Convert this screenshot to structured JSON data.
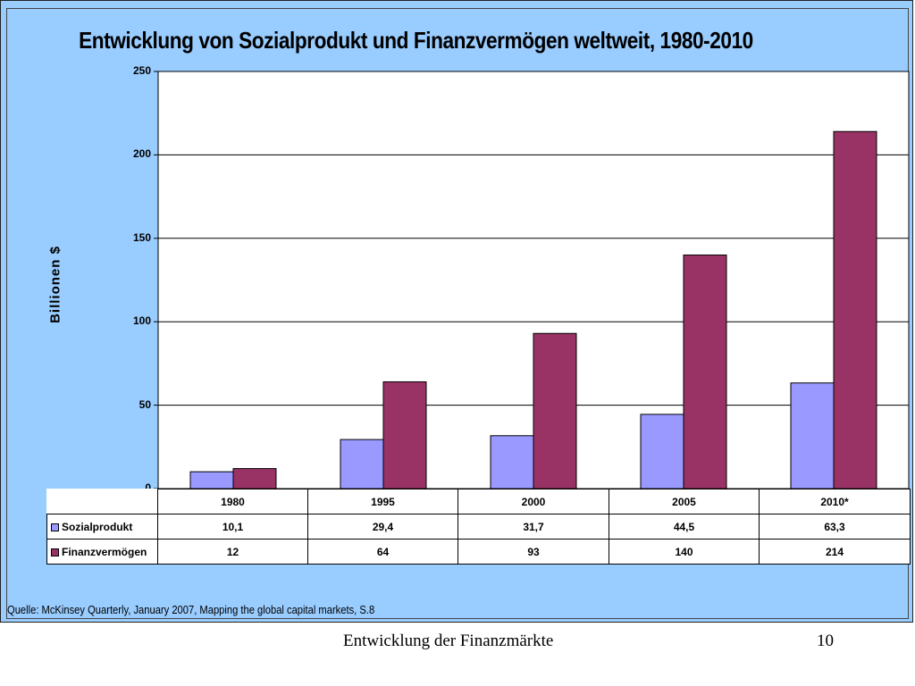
{
  "chart_data": {
    "type": "bar",
    "title": "Entwicklung von Sozialprodukt und Finanzvermögen weltweit, 1980-2010",
    "ylabel": "Billionen $",
    "ylim": [
      0,
      250
    ],
    "yticks": [
      0,
      50,
      100,
      150,
      200,
      250
    ],
    "grid": true,
    "categories": [
      "1980",
      "1995",
      "2000",
      "2005",
      "2010*"
    ],
    "series": [
      {
        "name": "Sozialprodukt",
        "values": [
          10.1,
          29.4,
          31.7,
          44.5,
          63.3
        ],
        "value_labels": [
          "10,1",
          "29,4",
          "31,7",
          "44,5",
          "63,3"
        ],
        "color": "#9999ff"
      },
      {
        "name": "Finanzvermögen",
        "values": [
          12,
          64,
          93,
          140,
          214
        ],
        "value_labels": [
          "12",
          "64",
          "93",
          "140",
          "214"
        ],
        "color": "#993366"
      }
    ]
  },
  "source": "Quelle: McKinsey Quarterly, January 2007, Mapping the global capital markets, S.8",
  "footer": {
    "text": "Entwicklung der Finanzmärkte",
    "page": "10"
  }
}
